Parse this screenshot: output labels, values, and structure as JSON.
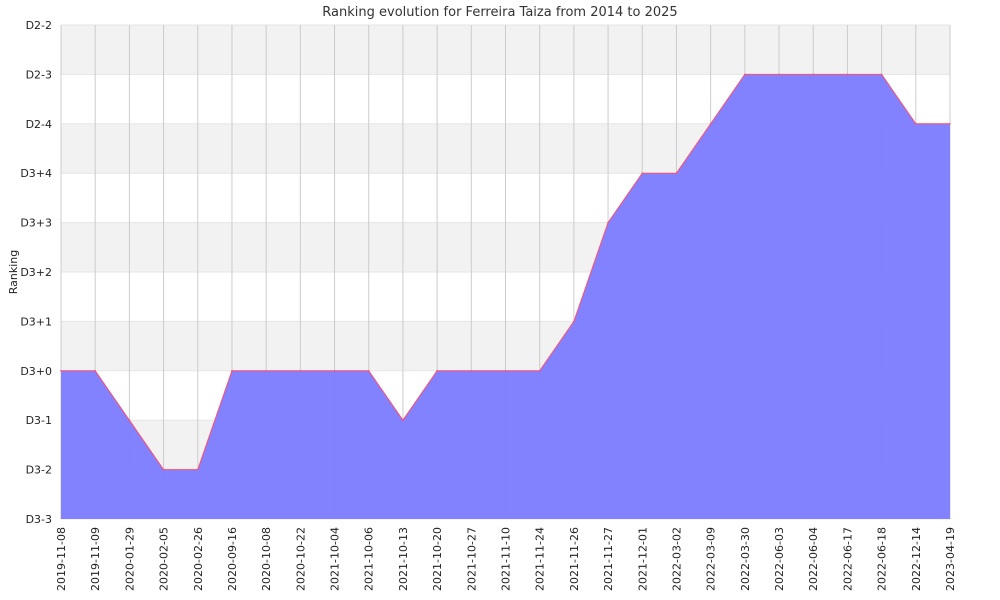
{
  "chart_data": {
    "type": "area",
    "title": "Ranking evolution for Ferreira Taiza from 2014 to 2025",
    "xlabel": "",
    "ylabel": "Ranking",
    "categories": [
      "2019-11-08",
      "2019-11-09",
      "2020-01-29",
      "2020-02-05",
      "2020-02-26",
      "2020-09-16",
      "2020-10-08",
      "2020-10-22",
      "2021-10-04",
      "2021-10-06",
      "2021-10-13",
      "2021-10-20",
      "2021-10-27",
      "2021-11-10",
      "2021-11-24",
      "2021-11-26",
      "2021-11-27",
      "2021-12-01",
      "2022-03-02",
      "2022-03-09",
      "2022-03-30",
      "2022-06-03",
      "2022-06-04",
      "2022-06-17",
      "2022-06-18",
      "2022-12-14",
      "2023-04-19"
    ],
    "y_ticks": [
      "D3-3",
      "D3-2",
      "D3-1",
      "D3+0",
      "D3+1",
      "D3+2",
      "D3+3",
      "D3+4",
      "D2-4",
      "D2-3",
      "D2-2"
    ],
    "series": [
      {
        "values": [
          "D3+0",
          "D3+0",
          "D3-1",
          "D3-2",
          "D3-2",
          "D3+0",
          "D3+0",
          "D3+0",
          "D3+0",
          "D3+0",
          "D3-1",
          "D3+0",
          "D3+0",
          "D3+0",
          "D3+0",
          "D3+1",
          "D3+3",
          "D3+4",
          "D3+4",
          "D2-4",
          "D2-3",
          "D2-3",
          "D2-3",
          "D2-3",
          "D2-3",
          "D2-4",
          "D2-4"
        ]
      }
    ],
    "grid": true,
    "colors": {
      "fill": "#8080ff",
      "line": "#ff4d6d",
      "band": "#f2f2f2",
      "gridline": "#cccccc"
    }
  }
}
